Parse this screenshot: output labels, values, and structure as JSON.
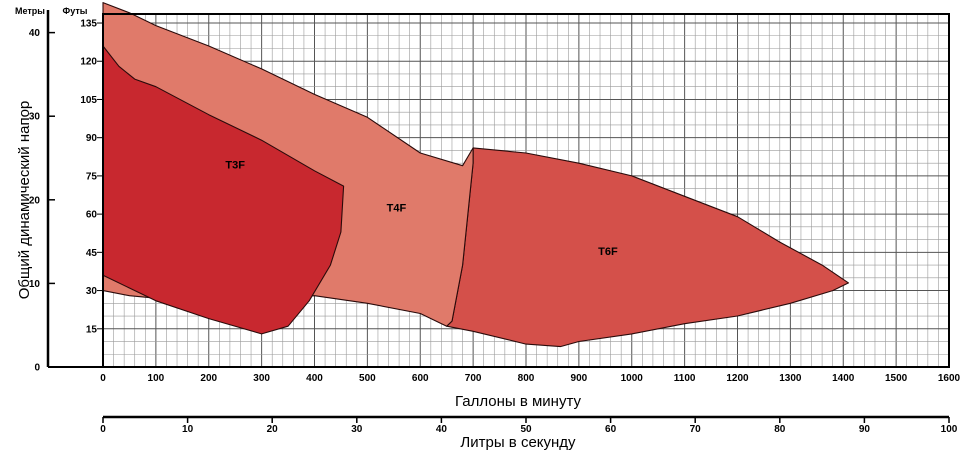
{
  "chart_data": {
    "type": "area",
    "units": {
      "left": "Метры",
      "right": "Футы"
    },
    "ylabel": "Общий динамический напор",
    "xlabel": "Галлоны в минуту",
    "x2label": "Литры в секунду",
    "xlim": [
      0,
      1600
    ],
    "ylim_feet": [
      0,
      150
    ],
    "ylim_meters": [
      0,
      45.72
    ],
    "x_ticks": [
      0,
      100,
      200,
      300,
      400,
      500,
      600,
      700,
      800,
      900,
      1000,
      1100,
      1200,
      1300,
      1400,
      1500,
      1600
    ],
    "x2_ticks": [
      0,
      10,
      20,
      30,
      40,
      50,
      60,
      70,
      80,
      90,
      100
    ],
    "y_feet_ticks": [
      15,
      30,
      45,
      60,
      75,
      90,
      105,
      120,
      135
    ],
    "y_meter_ticks": [
      0,
      10,
      20,
      30,
      40
    ],
    "grid": true,
    "colors": {
      "T3F": "#c8282f",
      "T4F": "#e07a6a",
      "T6F": "#d4504a",
      "outline": "#2a0a0a",
      "grid": "#9a9a9a"
    },
    "series": [
      {
        "name": "T6F",
        "points": [
          [
            700,
            86
          ],
          [
            800,
            84
          ],
          [
            900,
            80
          ],
          [
            1000,
            75
          ],
          [
            1100,
            67
          ],
          [
            1200,
            59
          ],
          [
            1280,
            49
          ],
          [
            1360,
            40
          ],
          [
            1410,
            33
          ],
          [
            1380,
            30
          ],
          [
            1300,
            25
          ],
          [
            1200,
            20
          ],
          [
            1100,
            17
          ],
          [
            1000,
            13
          ],
          [
            900,
            10
          ],
          [
            865,
            8
          ],
          [
            800,
            9
          ],
          [
            700,
            14
          ],
          [
            650,
            16
          ],
          [
            660,
            18
          ],
          [
            680,
            40
          ],
          [
            700,
            80
          ],
          [
            700,
            86
          ]
        ]
      },
      {
        "name": "T4F",
        "points": [
          [
            0,
            143
          ],
          [
            50,
            139
          ],
          [
            100,
            134
          ],
          [
            200,
            126
          ],
          [
            300,
            117
          ],
          [
            400,
            107
          ],
          [
            500,
            98
          ],
          [
            600,
            84
          ],
          [
            680,
            79
          ],
          [
            700,
            86
          ],
          [
            700,
            80
          ],
          [
            680,
            40
          ],
          [
            660,
            18
          ],
          [
            650,
            16
          ],
          [
            600,
            21
          ],
          [
            500,
            25
          ],
          [
            400,
            28
          ],
          [
            330,
            27
          ],
          [
            300,
            28
          ],
          [
            220,
            30
          ],
          [
            150,
            29
          ],
          [
            100,
            27
          ],
          [
            50,
            28
          ],
          [
            0,
            30
          ]
        ]
      },
      {
        "name": "T3F",
        "points": [
          [
            0,
            126
          ],
          [
            30,
            118
          ],
          [
            60,
            113
          ],
          [
            100,
            110
          ],
          [
            200,
            99
          ],
          [
            300,
            89
          ],
          [
            400,
            77
          ],
          [
            455,
            71
          ],
          [
            450,
            53
          ],
          [
            430,
            40
          ],
          [
            390,
            26
          ],
          [
            350,
            16
          ],
          [
            300,
            13
          ],
          [
            200,
            19
          ],
          [
            100,
            26
          ],
          [
            50,
            31
          ],
          [
            0,
            36
          ]
        ]
      }
    ]
  }
}
